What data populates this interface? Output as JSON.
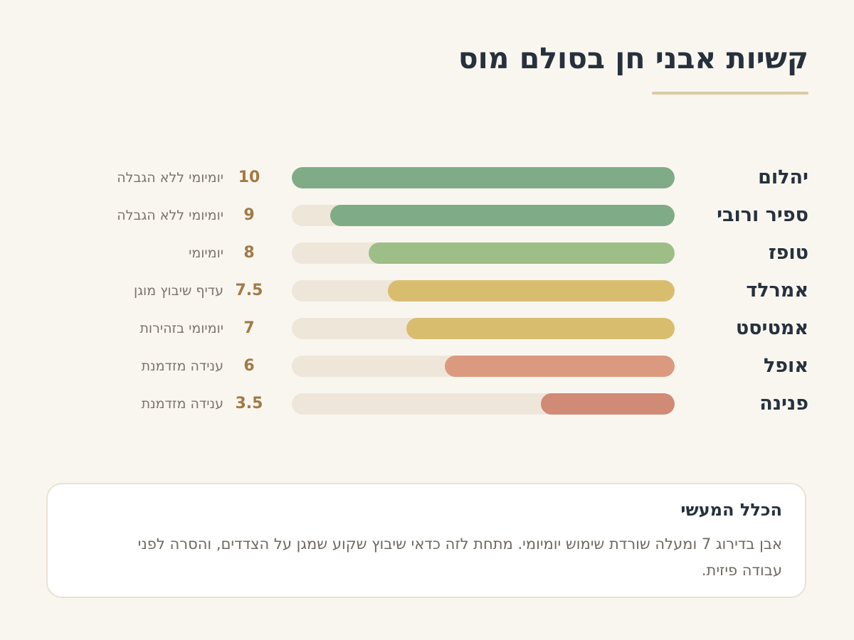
{
  "chart_data": {
    "type": "bar",
    "title": "קשיות אבני חן בסולם מוס",
    "xlabel": "",
    "ylabel": "",
    "xlim": [
      0,
      10
    ],
    "categories": [
      "יהלום",
      "ספיר ורובי",
      "טופז",
      "אמרלד",
      "אמטיסט",
      "אופל",
      "פנינה"
    ],
    "values": [
      10,
      9,
      8,
      7.5,
      7,
      6,
      3.5
    ],
    "value_labels": [
      "10",
      "9",
      "8",
      "7.5",
      "7",
      "6",
      "3.5"
    ],
    "usage_labels": [
      "יומיומי ללא הגבלה",
      "יומיומי ללא הגבלה",
      "יומיומי",
      "עדיף שיבוץ מוגן",
      "יומיומי בזהירות",
      "ענידה מזדמנת",
      "ענידה מזדמנת"
    ],
    "bar_colors": [
      "#7fac87",
      "#7fac87",
      "#9dbe86",
      "#d9bd6e",
      "#d9bd6e",
      "#db9a80",
      "#d18a75"
    ],
    "orientation": "horizontal",
    "direction": "rtl",
    "grid": false,
    "legend": "none"
  },
  "note": {
    "title": "הכלל המעשי",
    "body": "אבן בדירוג 7 ומעלה שורדת שימוש יומיומי. מתחת לזה כדאי שיבוץ שקוע שמגן על הצדדים, והסרה לפני עבודה פיזית."
  },
  "colors": {
    "background": "#f9f6f0",
    "track": "#efe6da",
    "title": "#26313d",
    "accent": "#dcc9a4",
    "value": "#a27a44"
  }
}
